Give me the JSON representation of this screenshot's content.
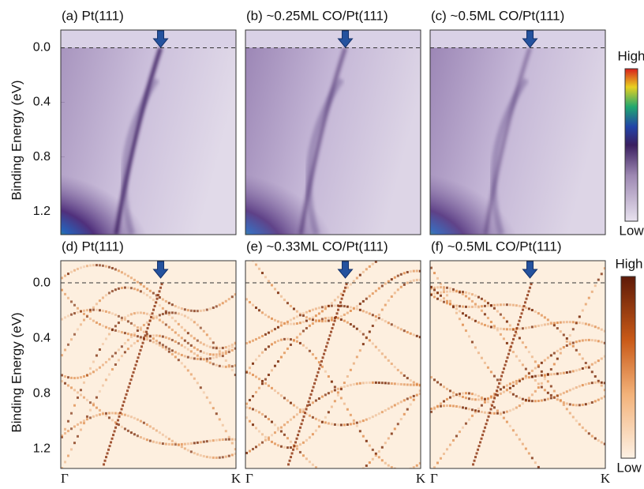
{
  "figure": {
    "rows": [
      {
        "y_axis_label": "Binding Energy (eV)",
        "ylim": [
          -0.13,
          1.37
        ],
        "yticks": [
          {
            "value": 0,
            "label": "0.0"
          },
          {
            "value": 0.4,
            "label": "0.4"
          },
          {
            "value": 0.8,
            "label": "0.8"
          },
          {
            "value": 1.2,
            "label": "1.2"
          }
        ],
        "panels": [
          {
            "title": "(a) Pt(111)"
          },
          {
            "title": "(b) ~0.25ML CO/Pt(111)"
          },
          {
            "title": "(c) ~0.5ML CO/Pt(111)"
          }
        ],
        "colorbar": {
          "high": "High",
          "low": "Low"
        }
      },
      {
        "y_axis_label": "Binding Energy (eV)",
        "ylim": [
          -0.16,
          1.34
        ],
        "yticks": [
          {
            "value": 0,
            "label": "0.0"
          },
          {
            "value": 0.4,
            "label": "0.4"
          },
          {
            "value": 0.8,
            "label": "0.8"
          },
          {
            "value": 1.2,
            "label": "1.2"
          }
        ],
        "panels": [
          {
            "title": "(d) Pt(111)"
          },
          {
            "title": "(e) ~0.33ML CO/Pt(111)"
          },
          {
            "title": "(f) ~0.5ML CO/Pt(111)"
          }
        ],
        "colorbar": {
          "high": "High",
          "low": "Low"
        },
        "x_labels": [
          "Γ",
          "K"
        ]
      }
    ]
  }
}
